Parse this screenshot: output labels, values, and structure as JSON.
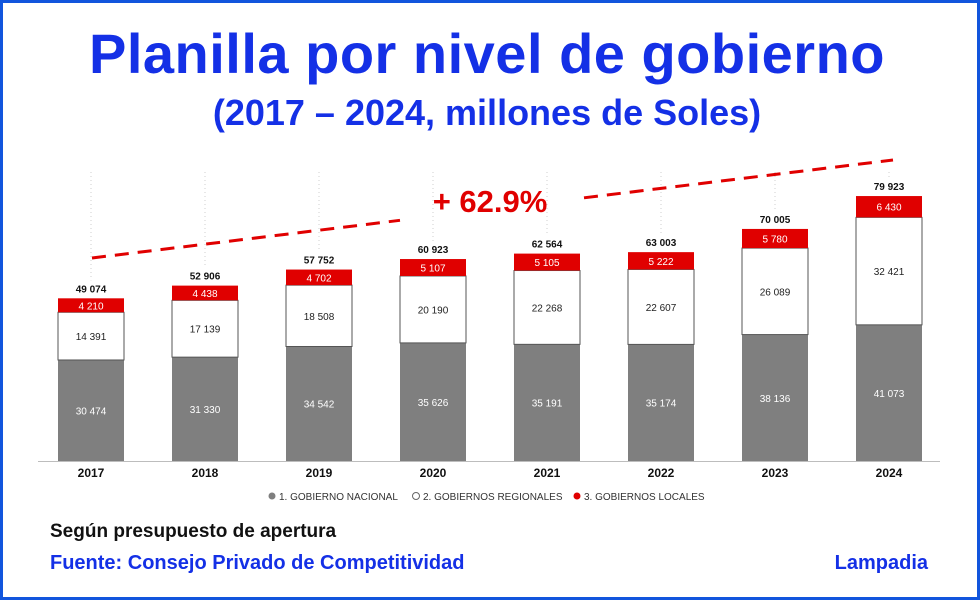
{
  "header": {
    "title": "Planilla por nivel de gobierno",
    "subtitle": "(2017 – 2024, millones de Soles)"
  },
  "chart_data": {
    "type": "bar",
    "stacked": true,
    "categories": [
      "2017",
      "2018",
      "2019",
      "2020",
      "2021",
      "2022",
      "2023",
      "2024"
    ],
    "series": [
      {
        "name": "1. GOBIERNO NACIONAL",
        "color": "#7f7f7f",
        "values": [
          30474,
          31330,
          34542,
          35626,
          35191,
          35174,
          38136,
          41073
        ]
      },
      {
        "name": "2. GOBIERNOS REGIONALES",
        "color": "#ffffff",
        "values": [
          14391,
          17139,
          18508,
          20190,
          22268,
          22607,
          26089,
          32421
        ]
      },
      {
        "name": "3. GOBIERNOS LOCALES",
        "color": "#e00000",
        "values": [
          4210,
          4438,
          4702,
          5107,
          5105,
          5222,
          5780,
          6430
        ]
      }
    ],
    "totals": [
      49074,
      52906,
      57752,
      60923,
      62564,
      63003,
      70005,
      79923
    ],
    "annotation": "+ 62.9%",
    "legend_position": "bottom",
    "grid": false
  },
  "footer": {
    "note": "Según presupuesto de apertura",
    "source": "Fuente: Consejo Privado de Competitividad",
    "brand": "Lampadia"
  }
}
